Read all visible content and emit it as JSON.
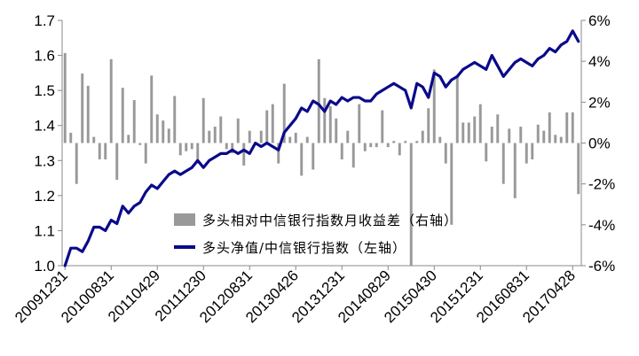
{
  "chart_data": {
    "type": "bar+line",
    "left_axis": {
      "ylim": [
        1.0,
        1.7
      ],
      "ticks": [
        "1.0",
        "1.1",
        "1.2",
        "1.3",
        "1.4",
        "1.5",
        "1.6",
        "1.7"
      ]
    },
    "right_axis": {
      "ylim": [
        -6,
        6
      ],
      "ticks": [
        "-6%",
        "-4%",
        "-2%",
        "0%",
        "2%",
        "4%",
        "6%"
      ]
    },
    "x_tick_labels": [
      "20091231",
      "20100831",
      "20110429",
      "20111230",
      "20120831",
      "20130426",
      "20131231",
      "20140829",
      "20150430",
      "20151231",
      "20160831",
      "20170428"
    ],
    "x_tick_positions": [
      0,
      8,
      16,
      24,
      32,
      40,
      48,
      56,
      64,
      72,
      80,
      88
    ],
    "month_count": 90,
    "colors": {
      "bar": "#999999",
      "line": "#0a0a8a",
      "axis": "#888888"
    },
    "series": [
      {
        "name": "多头相对中信银行指数月收益差（右轴）",
        "type": "bar",
        "axis": "right",
        "values": [
          4.4,
          0.5,
          -2.0,
          3.4,
          2.8,
          0.3,
          -0.8,
          -0.8,
          4.1,
          -1.8,
          2.7,
          0.4,
          2.1,
          -0.1,
          -1.0,
          3.3,
          1.4,
          1.1,
          0.7,
          2.3,
          -0.6,
          -0.4,
          -0.3,
          -1.0,
          2.2,
          0.6,
          0.8,
          1.3,
          -0.3,
          -0.5,
          1.2,
          -1.1,
          0.6,
          -0.1,
          0.6,
          1.6,
          1.9,
          -1.0,
          2.9,
          0.3,
          0.5,
          -1.6,
          0.3,
          -1.3,
          4.1,
          2.2,
          1.8,
          1.2,
          -0.8,
          0.6,
          -1.2,
          1.9,
          -0.4,
          -0.2,
          -0.2,
          1.6,
          -0.2,
          0.1,
          -0.6,
          0.1,
          -6.0,
          0.1,
          0.6,
          1.7,
          3.6,
          0.3,
          -1.0,
          -4.0,
          3.3,
          1.0,
          1.0,
          1.3,
          1.9,
          -0.9,
          0.8,
          1.4,
          -2.0,
          0.7,
          -2.7,
          0.8,
          -1.0,
          -0.8,
          0.9,
          0.6,
          1.5,
          0.4,
          0.3,
          1.5,
          1.5,
          -2.5
        ]
      },
      {
        "name": "多头净值/中信银行指数（左轴）",
        "type": "line",
        "axis": "left",
        "values": [
          1.0,
          1.05,
          1.05,
          1.04,
          1.07,
          1.11,
          1.11,
          1.1,
          1.13,
          1.12,
          1.17,
          1.15,
          1.17,
          1.18,
          1.21,
          1.23,
          1.22,
          1.24,
          1.26,
          1.27,
          1.26,
          1.27,
          1.28,
          1.3,
          1.28,
          1.3,
          1.31,
          1.32,
          1.32,
          1.33,
          1.32,
          1.33,
          1.32,
          1.35,
          1.34,
          1.35,
          1.34,
          1.33,
          1.38,
          1.4,
          1.42,
          1.45,
          1.44,
          1.47,
          1.46,
          1.44,
          1.47,
          1.46,
          1.48,
          1.47,
          1.48,
          1.48,
          1.47,
          1.47,
          1.49,
          1.5,
          1.51,
          1.52,
          1.51,
          1.5,
          1.45,
          1.52,
          1.51,
          1.48,
          1.55,
          1.54,
          1.51,
          1.53,
          1.54,
          1.56,
          1.57,
          1.58,
          1.57,
          1.56,
          1.6,
          1.57,
          1.54,
          1.56,
          1.58,
          1.59,
          1.58,
          1.57,
          1.59,
          1.6,
          1.62,
          1.61,
          1.63,
          1.64,
          1.67,
          1.64
        ]
      }
    ]
  }
}
